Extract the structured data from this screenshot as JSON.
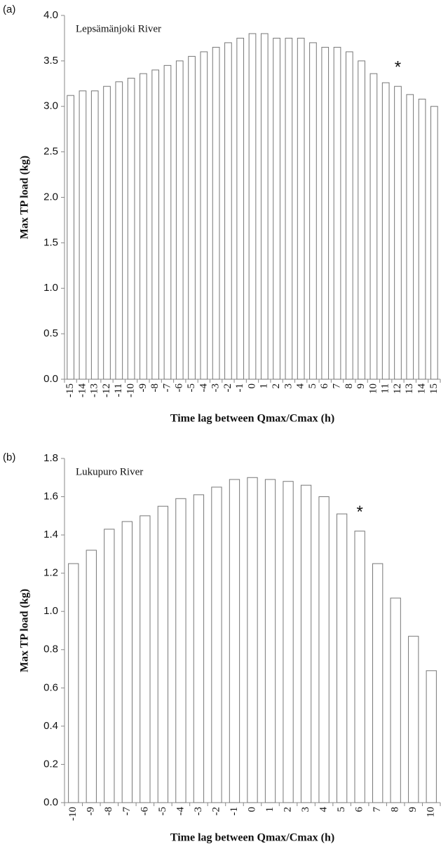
{
  "chart_data": [
    {
      "type": "bar",
      "panel_label": "(a)",
      "title": "Lepsämänjoki River",
      "x_label": "Time lag between Qmax/Cmax (h)",
      "y_label": "Max TP load (kg)",
      "categories": [
        "-15",
        "-14",
        "-13",
        "-12",
        "-11",
        "-10",
        "-9",
        "-8",
        "-7",
        "-6",
        "-5",
        "-4",
        "-3",
        "-2",
        "-1",
        "0",
        "1",
        "2",
        "3",
        "4",
        "5",
        "6",
        "7",
        "8",
        "9",
        "10",
        "11",
        "12",
        "13",
        "14",
        "15"
      ],
      "values": [
        3.12,
        3.17,
        3.17,
        3.22,
        3.27,
        3.31,
        3.36,
        3.4,
        3.45,
        3.5,
        3.55,
        3.6,
        3.65,
        3.7,
        3.75,
        3.8,
        3.8,
        3.75,
        3.75,
        3.75,
        3.7,
        3.65,
        3.65,
        3.6,
        3.5,
        3.36,
        3.26,
        3.22,
        3.13,
        3.08,
        3.0
      ],
      "color": "#ffffff",
      "ylim": [
        0,
        4
      ],
      "yticks": [
        {
          "value": 0,
          "label": "0.0"
        },
        0.5,
        {
          "value": 1,
          "label": "1.0"
        },
        1.5,
        {
          "value": 2,
          "label": "2.0"
        },
        2.5,
        {
          "value": 3,
          "label": "3.0"
        },
        3.5,
        {
          "value": 4,
          "label": "4.0"
        }
      ],
      "annotation": {
        "text": "*",
        "category": "12"
      }
    },
    {
      "type": "bar",
      "panel_label": "(b)",
      "title": "Lukupuro River",
      "x_label": "Time lag between Qmax/Cmax (h)",
      "y_label": "Max TP load (kg)",
      "categories": [
        "-10",
        "-9",
        "-8",
        "-7",
        "-6",
        "-5",
        "-4",
        "-3",
        "-2",
        "-1",
        "0",
        "1",
        "2",
        "3",
        "4",
        "5",
        "6",
        "7",
        "8",
        "9",
        "10"
      ],
      "values": [
        1.25,
        1.32,
        1.43,
        1.47,
        1.5,
        1.55,
        1.59,
        1.61,
        1.65,
        1.69,
        1.7,
        1.69,
        1.68,
        1.66,
        1.6,
        1.51,
        1.42,
        1.25,
        1.07,
        0.87,
        0.69
      ],
      "color": "#ffffff",
      "ylim": [
        0,
        1.8
      ],
      "yticks": [
        {
          "value": 0,
          "label": "0.0"
        },
        0.2,
        0.4,
        0.6,
        0.8,
        {
          "value": 1,
          "label": "1.0"
        },
        1.2,
        1.4,
        1.6,
        1.8
      ],
      "annotation": {
        "text": "*",
        "category": "6"
      }
    }
  ]
}
